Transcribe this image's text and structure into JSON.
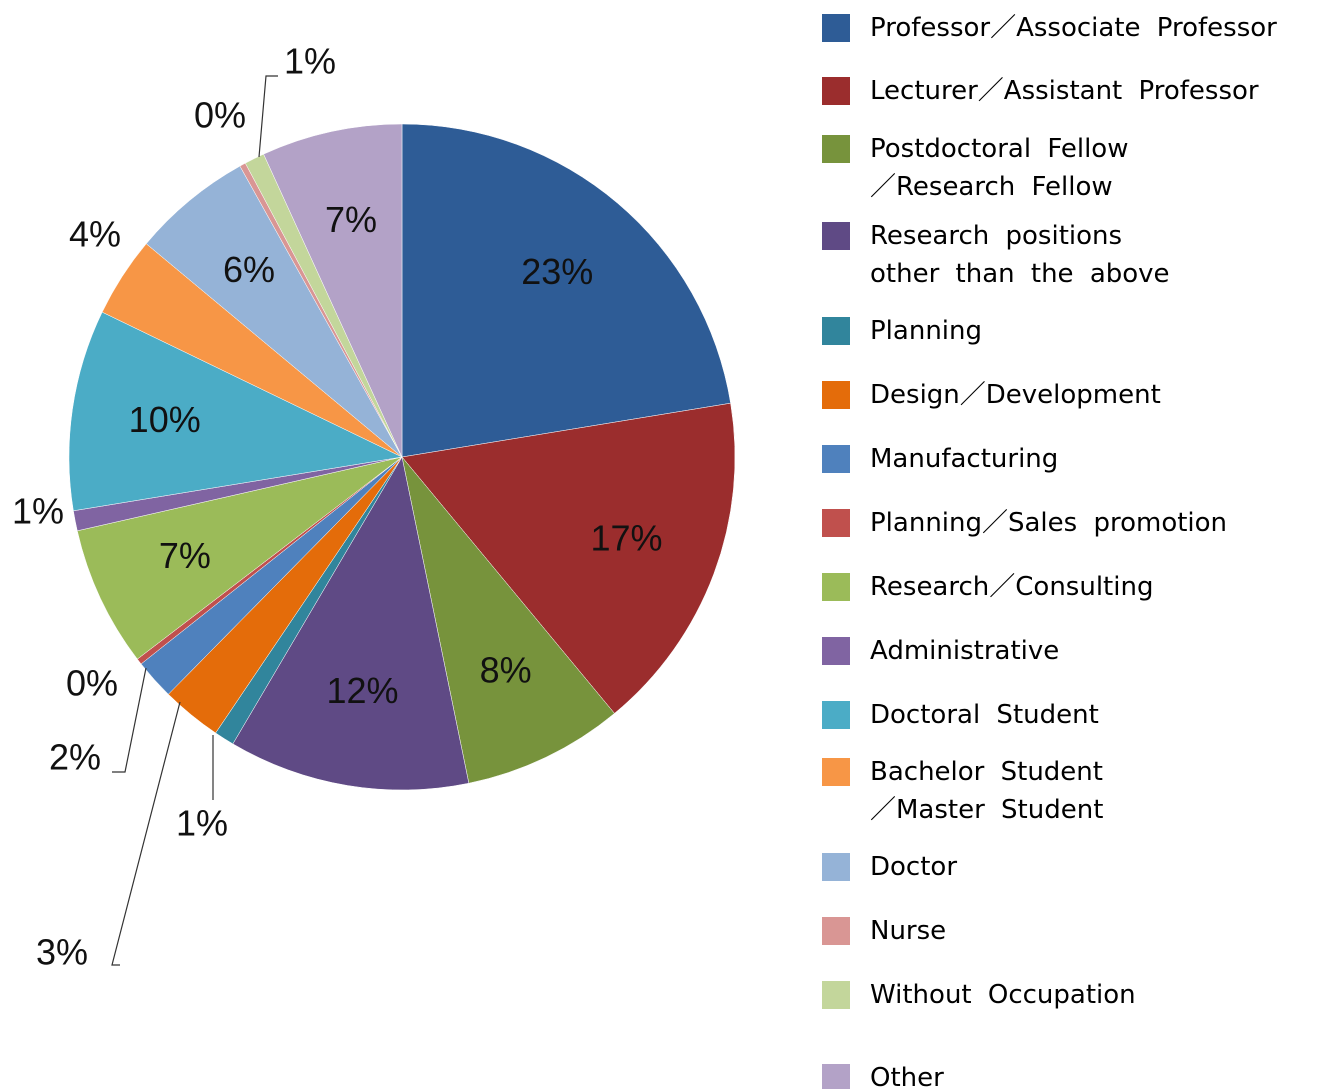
{
  "chart_data": {
    "type": "pie",
    "categories": [
      "Professor／Associate Professor",
      "Lecturer／Assistant Professor",
      "Postdoctoral Fellow／Research Fellow",
      "Research positions other than the above",
      "Planning",
      "Design／Development",
      "Manufacturing",
      "Planning／Sales promotion",
      "Research／Consulting",
      "Administrative",
      "Doctoral Student",
      "Bachelor Student／Master Student",
      "Doctor",
      "Nurse",
      "Without Occupation",
      "Other"
    ],
    "values": [
      23,
      17,
      8,
      12,
      1,
      3,
      2,
      0.3,
      7,
      1,
      10,
      4,
      6,
      0.3,
      1,
      7
    ],
    "value_labels": [
      "23%",
      "17%",
      "8%",
      "12%",
      "1%",
      "3%",
      "2%",
      "0%",
      "7%",
      "1%",
      "10%",
      "4%",
      "6%",
      "0%",
      "1%",
      "7%"
    ],
    "colors": [
      "#2e5c96",
      "#9b2d2d",
      "#77933c",
      "#5f4a85",
      "#31859c",
      "#e46c0a",
      "#4f81bd",
      "#c0504d",
      "#9bbb59",
      "#8064a2",
      "#4bacc6",
      "#f79646",
      "#95b3d7",
      "#d99694",
      "#c3d69b",
      "#b3a2c7"
    ],
    "legend": "right"
  }
}
